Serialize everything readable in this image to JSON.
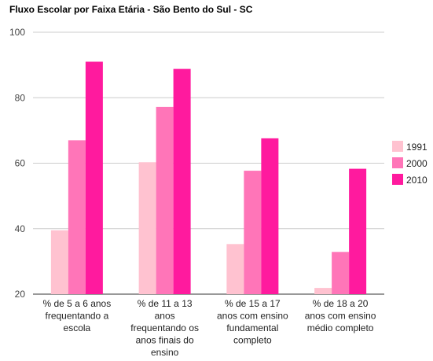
{
  "chart_data": {
    "type": "bar",
    "title": "Fluxo Escolar por Faixa Etária - São Bento do Sul - SC",
    "categories": [
      [
        "% de 5 a 6 anos",
        "frequentando a",
        "escola"
      ],
      [
        "% de 11 a 13",
        "anos",
        "frequentando os",
        "anos finais do",
        "ensino"
      ],
      [
        "% de 15 a 17",
        "anos com ensino",
        "fundamental",
        "completo"
      ],
      [
        "% de 18 a 20",
        "anos com ensino",
        "médio completo"
      ]
    ],
    "series": [
      {
        "name": "1991",
        "color": "#ffc2d0",
        "values": [
          39.5,
          60.3,
          35.3,
          21.9
        ]
      },
      {
        "name": "2000",
        "color": "#ff75b8",
        "values": [
          67.0,
          77.2,
          57.7,
          32.9
        ]
      },
      {
        "name": "2010",
        "color": "#ff1a9e",
        "values": [
          91.0,
          88.8,
          67.6,
          58.3
        ]
      }
    ],
    "ylim": [
      20,
      100
    ],
    "yticks": [
      "20",
      "40",
      "60",
      "80",
      "100"
    ],
    "grid": true,
    "legend": "right"
  }
}
